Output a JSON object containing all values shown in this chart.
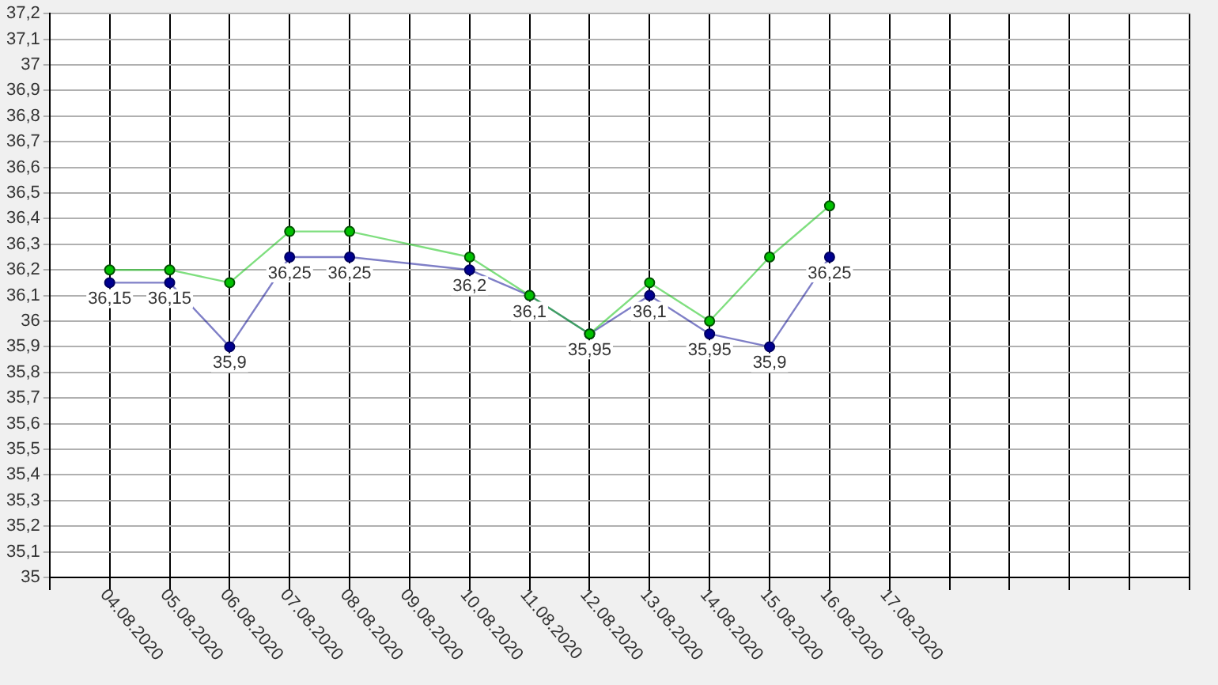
{
  "chart_data": {
    "type": "line",
    "categories": [
      null,
      "04.08.2020",
      "05.08.2020",
      "06.08.2020",
      "07.08.2020",
      "08.08.2020",
      "09.08.2020",
      "10.08.2020",
      "11.08.2020",
      "12.08.2020",
      "13.08.2020",
      "14.08.2020",
      "15.08.2020",
      "16.08.2020",
      "17.08.2020",
      null,
      null,
      null,
      null,
      null
    ],
    "series": [
      {
        "color": "#00c000",
        "values": [
          null,
          36.2,
          36.2,
          36.15,
          36.35,
          36.35,
          null,
          36.25,
          36.1,
          35.95,
          36.15,
          36.0,
          36.25,
          36.45,
          null,
          null,
          null,
          null,
          null,
          null
        ]
      },
      {
        "color": "#000090",
        "values": [
          null,
          36.15,
          36.15,
          35.9,
          36.25,
          36.25,
          null,
          36.2,
          36.1,
          35.95,
          36.1,
          35.95,
          35.9,
          36.25,
          null,
          null,
          null,
          null,
          null,
          null
        ],
        "value_labels": [
          null,
          "36,15",
          "36,15",
          "35,9",
          "36,25",
          "36,25",
          null,
          "36,2",
          "36,1",
          "35,95",
          "36,1",
          "35,95",
          "35,9",
          "36,25",
          null,
          null,
          null,
          null,
          null,
          null
        ]
      }
    ],
    "ylim": [
      35,
      37.2
    ],
    "yticks": [
      35,
      {
        "value": 35.1,
        "label": "35,1"
      },
      {
        "value": 35.2,
        "label": "35,2"
      },
      {
        "value": 35.3,
        "label": "35,3"
      },
      {
        "value": 35.4,
        "label": "35,4"
      },
      {
        "value": 35.5,
        "label": "35,5"
      },
      {
        "value": 35.6,
        "label": "35,6"
      },
      {
        "value": 35.7,
        "label": "35,7"
      },
      {
        "value": 35.8,
        "label": "35,8"
      },
      {
        "value": 35.9,
        "label": "35,9"
      },
      36,
      {
        "value": 36.1,
        "label": "36,1"
      },
      {
        "value": 36.2,
        "label": "36,2"
      },
      {
        "value": 36.3,
        "label": "36,3"
      },
      {
        "value": 36.4,
        "label": "36,4"
      },
      {
        "value": 36.5,
        "label": "36,5"
      },
      {
        "value": 36.6,
        "label": "36,6"
      },
      {
        "value": 36.7,
        "label": "36,7"
      },
      {
        "value": 36.8,
        "label": "36,8"
      },
      {
        "value": 36.9,
        "label": "36,9"
      },
      37,
      {
        "value": 37.1,
        "label": "37,1"
      },
      {
        "value": 37.2,
        "label": "37,2"
      }
    ],
    "grid": true,
    "legend": false,
    "marker": "circle",
    "line_style": "solid"
  }
}
